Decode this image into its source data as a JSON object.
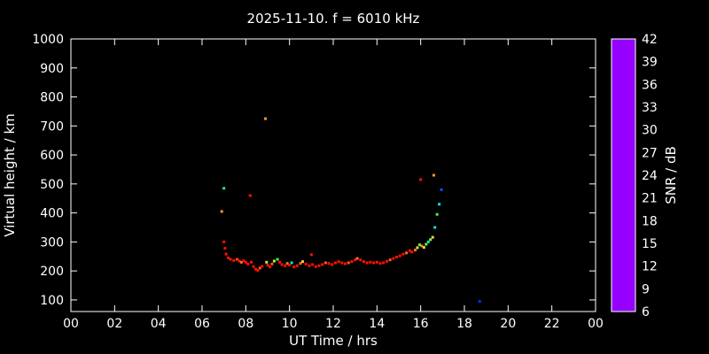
{
  "title": "2025-11-10. f = 6010 kHz",
  "colors": {
    "background": "#000000",
    "foreground": "#ffffff",
    "frame": "#ffffff"
  },
  "chart_data": {
    "type": "scatter",
    "title": "2025-11-10. f = 6010 kHz",
    "xlabel": "UT Time / hrs",
    "ylabel": "Virtual height / km",
    "xlim": [
      0,
      24
    ],
    "ylim": [
      60,
      1000
    ],
    "x_tick_values": [
      0,
      2,
      4,
      6,
      8,
      10,
      12,
      14,
      16,
      18,
      20,
      22,
      24
    ],
    "x_tick_labels": [
      "00",
      "02",
      "04",
      "06",
      "08",
      "10",
      "12",
      "14",
      "16",
      "18",
      "20",
      "22",
      "00"
    ],
    "y_tick_values": [
      100,
      200,
      300,
      400,
      500,
      600,
      700,
      800,
      900,
      1000
    ],
    "y_tick_labels": [
      "100",
      "200",
      "300",
      "400",
      "500",
      "600",
      "700",
      "800",
      "900",
      "1000"
    ],
    "grid": false,
    "colorbar": {
      "label": "SNR / dB",
      "min": 6,
      "max": 42,
      "tick_values": [
        6,
        9,
        12,
        15,
        18,
        21,
        24,
        27,
        30,
        33,
        36,
        39,
        42
      ],
      "tick_labels": [
        "6",
        "9",
        "12",
        "15",
        "18",
        "21",
        "24",
        "27",
        "30",
        "33",
        "36",
        "39",
        "42"
      ],
      "stops": [
        {
          "v": 6,
          "c": "#9600ff"
        },
        {
          "v": 9,
          "c": "#4b00ff"
        },
        {
          "v": 12,
          "c": "#0032ff"
        },
        {
          "v": 15,
          "c": "#00a0ff"
        },
        {
          "v": 18,
          "c": "#00e6e6"
        },
        {
          "v": 21,
          "c": "#00f5a0"
        },
        {
          "v": 24,
          "c": "#46f046"
        },
        {
          "v": 27,
          "c": "#b4f03c"
        },
        {
          "v": 30,
          "c": "#f0d245"
        },
        {
          "v": 33,
          "c": "#ffa040"
        },
        {
          "v": 36,
          "c": "#ff7020"
        },
        {
          "v": 39,
          "c": "#ff3000"
        },
        {
          "v": 42,
          "c": "#ff0000"
        }
      ]
    },
    "points_format": [
      "ut_hours",
      "virtual_height_km",
      "snr_db"
    ],
    "points": [
      [
        6.9,
        405,
        34
      ],
      [
        7.0,
        485,
        19
      ],
      [
        7.0,
        300,
        41
      ],
      [
        7.05,
        278,
        41
      ],
      [
        7.1,
        258,
        41
      ],
      [
        7.2,
        245,
        41
      ],
      [
        7.3,
        240,
        41
      ],
      [
        7.45,
        236,
        41
      ],
      [
        7.6,
        240,
        38
      ],
      [
        7.7,
        234,
        41
      ],
      [
        7.8,
        230,
        36
      ],
      [
        7.9,
        235,
        41
      ],
      [
        8.0,
        230,
        41
      ],
      [
        8.1,
        224,
        41
      ],
      [
        8.2,
        460,
        41
      ],
      [
        8.25,
        230,
        41
      ],
      [
        8.35,
        215,
        41
      ],
      [
        8.45,
        206,
        41
      ],
      [
        8.55,
        202,
        41
      ],
      [
        8.65,
        210,
        37
      ],
      [
        8.75,
        216,
        41
      ],
      [
        8.9,
        725,
        34
      ],
      [
        8.95,
        230,
        28
      ],
      [
        9.0,
        220,
        41
      ],
      [
        9.1,
        214,
        41
      ],
      [
        9.2,
        224,
        37
      ],
      [
        9.3,
        234,
        27
      ],
      [
        9.45,
        240,
        24
      ],
      [
        9.55,
        230,
        41
      ],
      [
        9.65,
        222,
        41
      ],
      [
        9.8,
        218,
        41
      ],
      [
        9.9,
        226,
        36
      ],
      [
        10.0,
        220,
        41
      ],
      [
        10.1,
        228,
        19
      ],
      [
        10.2,
        214,
        41
      ],
      [
        10.35,
        218,
        41
      ],
      [
        10.5,
        226,
        36
      ],
      [
        10.6,
        232,
        30
      ],
      [
        10.75,
        224,
        41
      ],
      [
        10.9,
        218,
        41
      ],
      [
        11.0,
        256,
        41
      ],
      [
        11.05,
        222,
        41
      ],
      [
        11.2,
        215,
        41
      ],
      [
        11.35,
        218,
        41
      ],
      [
        11.5,
        222,
        41
      ],
      [
        11.65,
        228,
        37
      ],
      [
        11.8,
        226,
        41
      ],
      [
        11.95,
        222,
        41
      ],
      [
        12.1,
        228,
        41
      ],
      [
        12.25,
        232,
        41
      ],
      [
        12.4,
        228,
        41
      ],
      [
        12.55,
        225,
        41
      ],
      [
        12.7,
        228,
        37
      ],
      [
        12.85,
        232,
        41
      ],
      [
        13.0,
        238,
        41
      ],
      [
        13.1,
        243,
        36
      ],
      [
        13.25,
        238,
        41
      ],
      [
        13.4,
        232,
        41
      ],
      [
        13.55,
        228,
        41
      ],
      [
        13.7,
        230,
        41
      ],
      [
        13.85,
        228,
        41
      ],
      [
        14.0,
        230,
        41
      ],
      [
        14.15,
        226,
        41
      ],
      [
        14.3,
        228,
        41
      ],
      [
        14.45,
        233,
        41
      ],
      [
        14.6,
        238,
        37
      ],
      [
        14.75,
        243,
        41
      ],
      [
        14.9,
        248,
        41
      ],
      [
        15.05,
        252,
        41
      ],
      [
        15.2,
        258,
        41
      ],
      [
        15.35,
        262,
        36
      ],
      [
        15.5,
        270,
        41
      ],
      [
        15.6,
        265,
        41
      ],
      [
        15.75,
        272,
        36
      ],
      [
        15.85,
        280,
        29
      ],
      [
        15.95,
        290,
        25
      ],
      [
        16.0,
        515,
        41
      ],
      [
        16.05,
        286,
        35
      ],
      [
        16.15,
        281,
        30
      ],
      [
        16.25,
        292,
        25
      ],
      [
        16.35,
        300,
        20
      ],
      [
        16.45,
        308,
        26
      ],
      [
        16.55,
        316,
        29
      ],
      [
        16.6,
        530,
        34
      ],
      [
        16.65,
        350,
        19
      ],
      [
        16.75,
        395,
        24
      ],
      [
        16.85,
        430,
        19
      ],
      [
        16.95,
        480,
        13
      ],
      [
        18.7,
        95,
        12
      ]
    ]
  }
}
